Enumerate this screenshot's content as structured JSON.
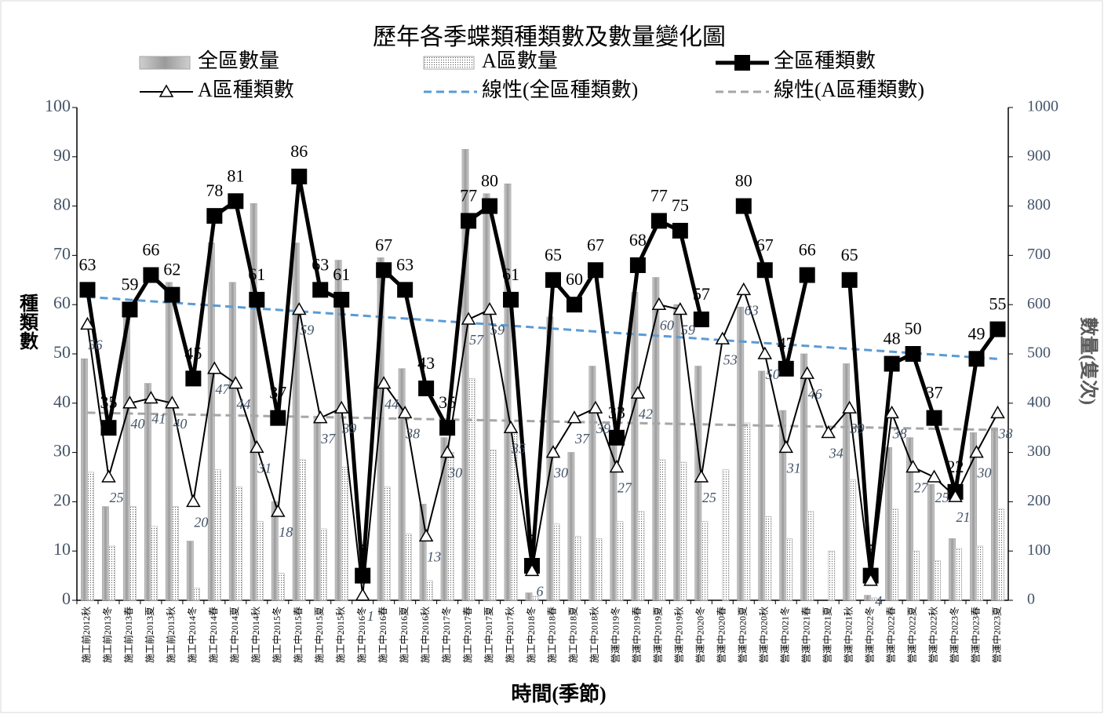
{
  "chart_data": {
    "type": "combo",
    "title": "歷年各季蝶類種類數及數量變化圖",
    "x_label": "時間(季節)",
    "y_label": "種類數",
    "y2_label": "數量(隻次)",
    "categories": [
      "施工前2012秋",
      "施工前2013冬",
      "施工前2013春",
      "施工前2013夏",
      "施工前2013秋",
      "施工中2014冬",
      "施工中2014春",
      "施工中2014夏",
      "施工中2014秋",
      "施工中2015冬",
      "施工中2015春",
      "施工中2015夏",
      "施工中2015秋",
      "施工中2016冬",
      "施工中2016春",
      "施工中2016夏",
      "施工中2016秋",
      "施工中2017冬",
      "施工中2017春",
      "施工中2017夏",
      "施工中2017秋",
      "施工中2018冬",
      "施工中2018春",
      "施工中2018夏",
      "施工中2018秋",
      "營運中2019冬",
      "營運中2019春",
      "營運中2019夏",
      "營運中2019秋",
      "營運中2020冬",
      "營運中2020春",
      "營運中2020夏",
      "營運中2020秋",
      "營運中2021冬",
      "營運中2021春",
      "營運中2021夏",
      "營運中2021秋",
      "營運中2022冬",
      "營運中2022春",
      "營運中2022夏",
      "營運中2022秋",
      "營運中2023冬",
      "營運中2023春",
      "營運中2023夏"
    ],
    "series": [
      {
        "name": "全區數量",
        "type": "bar",
        "axis": "y2",
        "color": "#a6a6a6",
        "values": [
          490,
          190,
          600,
          440,
          645,
          120,
          725,
          645,
          805,
          200,
          725,
          370,
          690,
          0,
          695,
          470,
          195,
          330,
          915,
          825,
          845,
          15,
          575,
          300,
          475,
          320,
          625,
          655,
          600,
          475,
          0,
          595,
          465,
          385,
          500,
          0,
          480,
          10,
          310,
          330,
          235,
          125,
          340,
          350
        ]
      },
      {
        "name": "A區數量",
        "type": "bar",
        "axis": "y2",
        "color": "#ffffff",
        "values": [
          260,
          110,
          190,
          150,
          190,
          25,
          265,
          230,
          160,
          55,
          285,
          145,
          270,
          5,
          230,
          135,
          40,
          300,
          450,
          305,
          340,
          8,
          155,
          130,
          125,
          160,
          180,
          285,
          280,
          160,
          265,
          360,
          170,
          125,
          180,
          100,
          245,
          5,
          185,
          100,
          80,
          105,
          110,
          185
        ]
      },
      {
        "name": "全區種類數",
        "type": "line",
        "color": "#000000",
        "values": [
          63,
          35,
          59,
          66,
          62,
          45,
          78,
          81,
          61,
          37,
          86,
          63,
          61,
          5,
          67,
          63,
          43,
          35,
          77,
          80,
          61,
          7,
          65,
          60,
          67,
          33,
          68,
          77,
          75,
          57,
          null,
          80,
          67,
          47,
          66,
          null,
          65,
          5,
          48,
          50,
          37,
          22,
          49,
          55
        ]
      },
      {
        "name": "A區種類數",
        "type": "line",
        "color": "#000000",
        "values": [
          56,
          25,
          40,
          41,
          40,
          20,
          47,
          44,
          31,
          18,
          59,
          37,
          39,
          1,
          44,
          38,
          13,
          30,
          57,
          59,
          35,
          6,
          30,
          37,
          39,
          27,
          42,
          60,
          59,
          25,
          53,
          63,
          50,
          31,
          46,
          34,
          39,
          4,
          38,
          27,
          25,
          21,
          30,
          38
        ]
      }
    ],
    "trendlines": [
      {
        "name": "線性(全區種類數)",
        "color": "#5b9bd5"
      },
      {
        "name": "線性(A區種類數)",
        "color": "#a6a6a6"
      }
    ],
    "ylim": [
      0,
      100
    ],
    "yticks": [
      0,
      10,
      20,
      30,
      40,
      50,
      60,
      70,
      80,
      90,
      100
    ],
    "y2lim": [
      0,
      1000
    ],
    "y2ticks": [
      0,
      100,
      200,
      300,
      400,
      500,
      600,
      700,
      800,
      900,
      1000
    ]
  }
}
